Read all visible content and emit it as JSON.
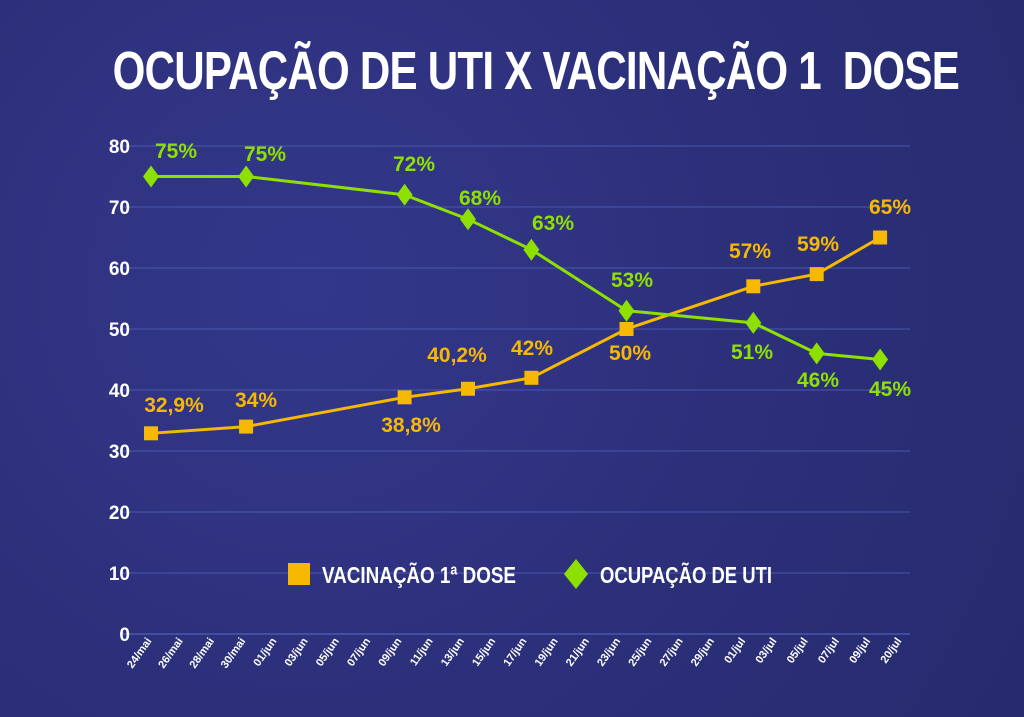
{
  "chart_data": {
    "type": "line",
    "title": "OCUPAÇÃO DE UTI X VACINAÇÃO 1  DOSE",
    "xlabel": "",
    "ylabel": "",
    "ylim": [
      0,
      80
    ],
    "yticks": [
      "0",
      "10",
      "20",
      "30",
      "40",
      "50",
      "60",
      "70",
      "80"
    ],
    "grid": true,
    "legend_position": "bottom-center",
    "categories": [
      "24/mai",
      "26/mai",
      "28/mai",
      "30/mai",
      "01/jun",
      "03/jun",
      "05/jun",
      "07/jun",
      "09/jun",
      "11/jun",
      "13/jun",
      "15/jun",
      "17/jun",
      "19/jun",
      "21/jun",
      "23/jun",
      "25/jun",
      "27/jun",
      "29/jun",
      "01/jul",
      "03/jul",
      "05/jul",
      "07/jul",
      "09/jul",
      "20/jul"
    ],
    "series": [
      {
        "name": "VACINAÇÃO 1ª DOSE",
        "color": "#f6b800",
        "marker": "square",
        "x": [
          "24/mai",
          "30/mai",
          "09/jun",
          "13/jun",
          "17/jun",
          "23/jun",
          "01/jul",
          "05/jul",
          "09/jul"
        ],
        "values": [
          32.9,
          34,
          38.8,
          40.2,
          42,
          50,
          57,
          59,
          65
        ],
        "labels": [
          "32,9%",
          "34%",
          "38,8%",
          "40,2%",
          "42%",
          "50%",
          "57%",
          "59%",
          "65%"
        ]
      },
      {
        "name": "OCUPAÇÃO DE UTI",
        "color": "#8ee000",
        "marker": "diamond",
        "x": [
          "24/mai",
          "30/mai",
          "09/jun",
          "13/jun",
          "17/jun",
          "23/jun",
          "01/jul",
          "05/jul",
          "09/jul"
        ],
        "values": [
          75,
          75,
          72,
          68,
          63,
          53,
          51,
          46,
          45
        ],
        "labels": [
          "75%",
          "75%",
          "72%",
          "68%",
          "63%",
          "53%",
          "51%",
          "46%",
          "45%"
        ]
      }
    ]
  }
}
